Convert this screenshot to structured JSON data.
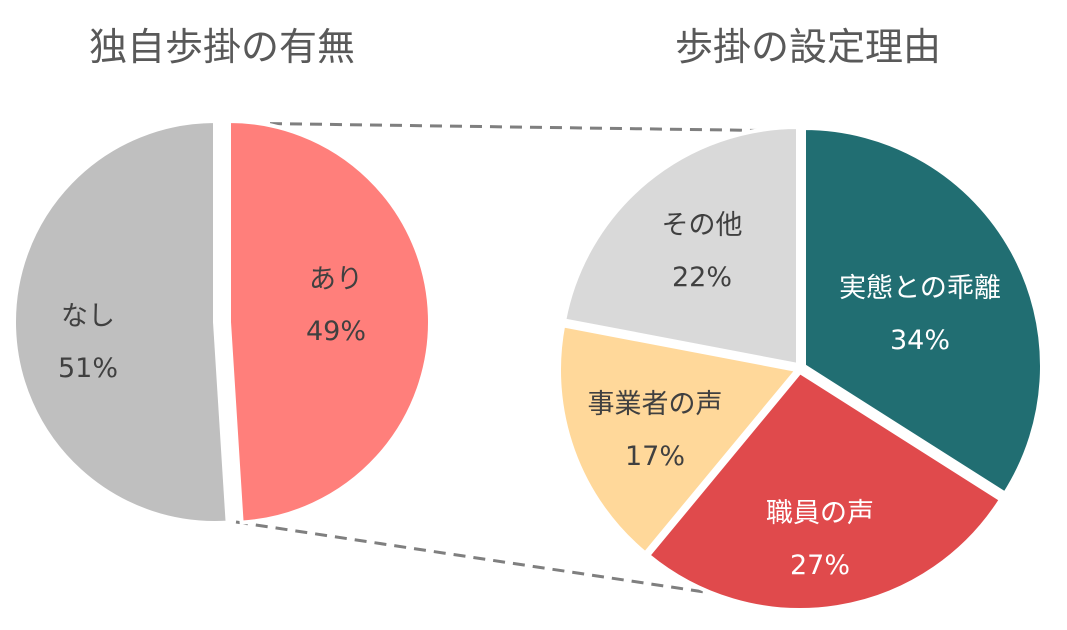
{
  "chart_data": [
    {
      "type": "pie",
      "title": "独自歩掛の有無",
      "slices": [
        {
          "label": "あり",
          "value": 49,
          "display": "49%",
          "color": "#FF7F7B",
          "text_color": "#404040"
        },
        {
          "label": "なし",
          "value": 51,
          "display": "51%",
          "color": "#BFBFBF",
          "text_color": "#404040"
        }
      ]
    },
    {
      "type": "pie",
      "title": "歩掛の設定理由",
      "slices": [
        {
          "label": "実態との乖離",
          "value": 34,
          "display": "34%",
          "color": "#216E72",
          "text_color": "#FFFFFF"
        },
        {
          "label": "職員の声",
          "value": 27,
          "display": "27%",
          "color": "#E04A4C",
          "text_color": "#FFFFFF"
        },
        {
          "label": "事業者の声",
          "value": 17,
          "display": "17%",
          "color": "#FFD89A",
          "text_color": "#404040"
        },
        {
          "label": "その他",
          "value": 22,
          "display": "22%",
          "color": "#D9D9D9",
          "text_color": "#404040"
        }
      ]
    }
  ],
  "connector_color": "#7F7F7F"
}
